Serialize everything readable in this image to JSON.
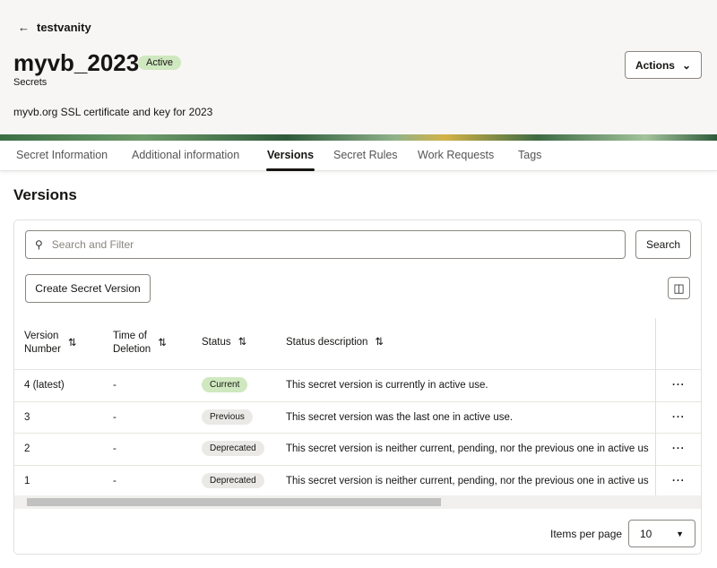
{
  "header": {
    "back_label": "testvanity",
    "title": "myvb_2023",
    "status": "Active",
    "subtitle": "Secrets",
    "description": "myvb.org SSL certificate and key for 2023",
    "actions_label": "Actions"
  },
  "tabs": [
    "Secret Information",
    "Additional information",
    "Versions",
    "Secret Rules",
    "Work Requests",
    "Tags"
  ],
  "section_title": "Versions",
  "search": {
    "placeholder": "Search and Filter",
    "button": "Search"
  },
  "create_button": "Create Secret Version",
  "columns": [
    "Version\nNumber",
    "Time of\nDeletion",
    "Status",
    "Status description"
  ],
  "rows": [
    {
      "version": "4 (latest)",
      "deletion": "-",
      "status": "Current",
      "description": "This secret version is currently in active use."
    },
    {
      "version": "3",
      "deletion": "-",
      "status": "Previous",
      "description": "This secret version was the last one in active use."
    },
    {
      "version": "2",
      "deletion": "-",
      "status": "Deprecated",
      "description": "This secret version is neither current, pending, nor the previous one in active us"
    },
    {
      "version": "1",
      "deletion": "-",
      "status": "Deprecated",
      "description": "This secret version is neither current, pending, nor the previous one in active us"
    }
  ],
  "pagination": {
    "label": "Items per page",
    "value": "10"
  }
}
